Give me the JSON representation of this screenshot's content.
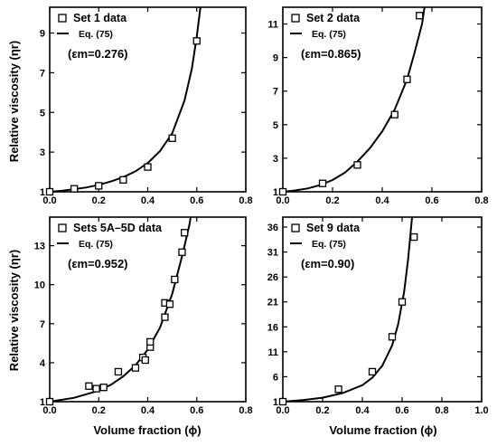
{
  "figure": {
    "ylabel": "Relative viscosity (ηr)",
    "xlabel": "Volume fraction (ϕ)"
  },
  "chart_data": [
    {
      "type": "scatter",
      "panel": "top-left",
      "legend": {
        "data_label": "Set 1 data",
        "fit_label": "Eq. (75)",
        "em_text": "(εm=0.276)"
      },
      "xlim": [
        0.0,
        0.8
      ],
      "ylim": [
        1,
        10.3
      ],
      "xticks": [
        "0.0",
        "0.2",
        "0.4",
        "0.6",
        "0.8"
      ],
      "xtick_values": [
        0.0,
        0.2,
        0.4,
        0.6,
        0.8
      ],
      "yticks": [
        "1",
        "3",
        "5",
        "7",
        "9"
      ],
      "ytick_values": [
        1,
        3,
        5,
        7,
        9
      ],
      "series": [
        {
          "kind": "data",
          "points": [
            [
              0.0,
              1.0
            ],
            [
              0.1,
              1.15
            ],
            [
              0.2,
              1.3
            ],
            [
              0.3,
              1.6
            ],
            [
              0.4,
              2.25
            ],
            [
              0.5,
              3.7
            ],
            [
              0.6,
              8.6
            ]
          ]
        },
        {
          "kind": "fit",
          "curve": [
            [
              0.0,
              1.0
            ],
            [
              0.05,
              1.05
            ],
            [
              0.1,
              1.13
            ],
            [
              0.15,
              1.22
            ],
            [
              0.2,
              1.35
            ],
            [
              0.25,
              1.52
            ],
            [
              0.3,
              1.74
            ],
            [
              0.35,
              2.03
            ],
            [
              0.4,
              2.45
            ],
            [
              0.45,
              3.05
            ],
            [
              0.5,
              3.95
            ],
            [
              0.55,
              5.6
            ],
            [
              0.58,
              7.2
            ],
            [
              0.6,
              8.8
            ],
            [
              0.615,
              10.3
            ]
          ]
        }
      ]
    },
    {
      "type": "scatter",
      "panel": "top-right",
      "legend": {
        "data_label": "Set 2 data",
        "fit_label": "Eq. (75)",
        "em_text": "(εm=0.865)"
      },
      "xlim": [
        0.0,
        0.8
      ],
      "ylim": [
        1,
        12.0
      ],
      "xticks": [
        "0.0",
        "0.2",
        "0.4",
        "0.6",
        "0.8"
      ],
      "xtick_values": [
        0.0,
        0.2,
        0.4,
        0.6,
        0.8
      ],
      "yticks": [
        "1",
        "3",
        "5",
        "7",
        "9",
        "11"
      ],
      "ytick_values": [
        1,
        3,
        5,
        7,
        9,
        11
      ],
      "series": [
        {
          "kind": "data",
          "points": [
            [
              0.0,
              1.0
            ],
            [
              0.16,
              1.5
            ],
            [
              0.3,
              2.6
            ],
            [
              0.45,
              5.6
            ],
            [
              0.5,
              7.7
            ],
            [
              0.55,
              11.5
            ]
          ]
        },
        {
          "kind": "fit",
          "curve": [
            [
              0.0,
              1.0
            ],
            [
              0.05,
              1.08
            ],
            [
              0.1,
              1.2
            ],
            [
              0.15,
              1.4
            ],
            [
              0.2,
              1.7
            ],
            [
              0.25,
              2.15
            ],
            [
              0.3,
              2.8
            ],
            [
              0.35,
              3.6
            ],
            [
              0.4,
              4.6
            ],
            [
              0.45,
              5.9
            ],
            [
              0.5,
              7.7
            ],
            [
              0.53,
              9.3
            ],
            [
              0.56,
              11.0
            ],
            [
              0.57,
              12.0
            ]
          ]
        }
      ]
    },
    {
      "type": "scatter",
      "panel": "bottom-left",
      "legend": {
        "data_label": "Sets 5A–5D data",
        "fit_label": "Eq. (75)",
        "em_text": "(εm=0.952)"
      },
      "xlim": [
        0.0,
        0.8
      ],
      "ylim": [
        1,
        15.2
      ],
      "xticks": [
        "0.0",
        "0.2",
        "0.4",
        "0.6",
        "0.8"
      ],
      "xtick_values": [
        0.0,
        0.2,
        0.4,
        0.6,
        0.8
      ],
      "yticks": [
        "1",
        "4",
        "7",
        "10",
        "13"
      ],
      "ytick_values": [
        1,
        4,
        7,
        10,
        13
      ],
      "series": [
        {
          "kind": "data",
          "points": [
            [
              0.0,
              1.0
            ],
            [
              0.16,
              2.2
            ],
            [
              0.19,
              2.0
            ],
            [
              0.22,
              2.1
            ],
            [
              0.28,
              3.3
            ],
            [
              0.35,
              3.6
            ],
            [
              0.38,
              4.4
            ],
            [
              0.39,
              4.2
            ],
            [
              0.41,
              5.2
            ],
            [
              0.41,
              5.6
            ],
            [
              0.47,
              8.6
            ],
            [
              0.47,
              7.5
            ],
            [
              0.49,
              8.5
            ],
            [
              0.51,
              10.4
            ],
            [
              0.54,
              12.5
            ],
            [
              0.55,
              14.0
            ]
          ]
        },
        {
          "kind": "fit",
          "curve": [
            [
              0.0,
              1.0
            ],
            [
              0.1,
              1.3
            ],
            [
              0.2,
              1.85
            ],
            [
              0.25,
              2.3
            ],
            [
              0.3,
              2.95
            ],
            [
              0.35,
              3.8
            ],
            [
              0.4,
              5.0
            ],
            [
              0.45,
              6.7
            ],
            [
              0.5,
              9.3
            ],
            [
              0.54,
              12.2
            ],
            [
              0.57,
              14.6
            ],
            [
              0.575,
              15.2
            ]
          ]
        }
      ]
    },
    {
      "type": "scatter",
      "panel": "bottom-right",
      "legend": {
        "data_label": "Set 9 data",
        "fit_label": "Eq. (75)",
        "em_text": "(εm=0.90)"
      },
      "xlim": [
        0.0,
        1.0
      ],
      "ylim": [
        1,
        38
      ],
      "xticks": [
        "0.0",
        "0.2",
        "0.4",
        "0.6",
        "0.8",
        "1.0"
      ],
      "xtick_values": [
        0.0,
        0.2,
        0.4,
        0.6,
        0.8,
        1.0
      ],
      "yticks": [
        "1",
        "6",
        "11",
        "16",
        "21",
        "26",
        "31",
        "36"
      ],
      "ytick_values": [
        1,
        6,
        11,
        16,
        21,
        26,
        31,
        36
      ],
      "series": [
        {
          "kind": "data",
          "points": [
            [
              0.0,
              1.0
            ],
            [
              0.28,
              3.5
            ],
            [
              0.45,
              7.0
            ],
            [
              0.55,
              14.0
            ],
            [
              0.6,
              21.0
            ],
            [
              0.66,
              34.0
            ]
          ]
        },
        {
          "kind": "fit",
          "curve": [
            [
              0.0,
              1.0
            ],
            [
              0.1,
              1.3
            ],
            [
              0.2,
              1.8
            ],
            [
              0.3,
              2.7
            ],
            [
              0.4,
              4.3
            ],
            [
              0.45,
              5.8
            ],
            [
              0.5,
              8.2
            ],
            [
              0.55,
              12.3
            ],
            [
              0.58,
              16.5
            ],
            [
              0.61,
              23.0
            ],
            [
              0.63,
              29.5
            ],
            [
              0.65,
              38.0
            ]
          ]
        }
      ]
    }
  ]
}
